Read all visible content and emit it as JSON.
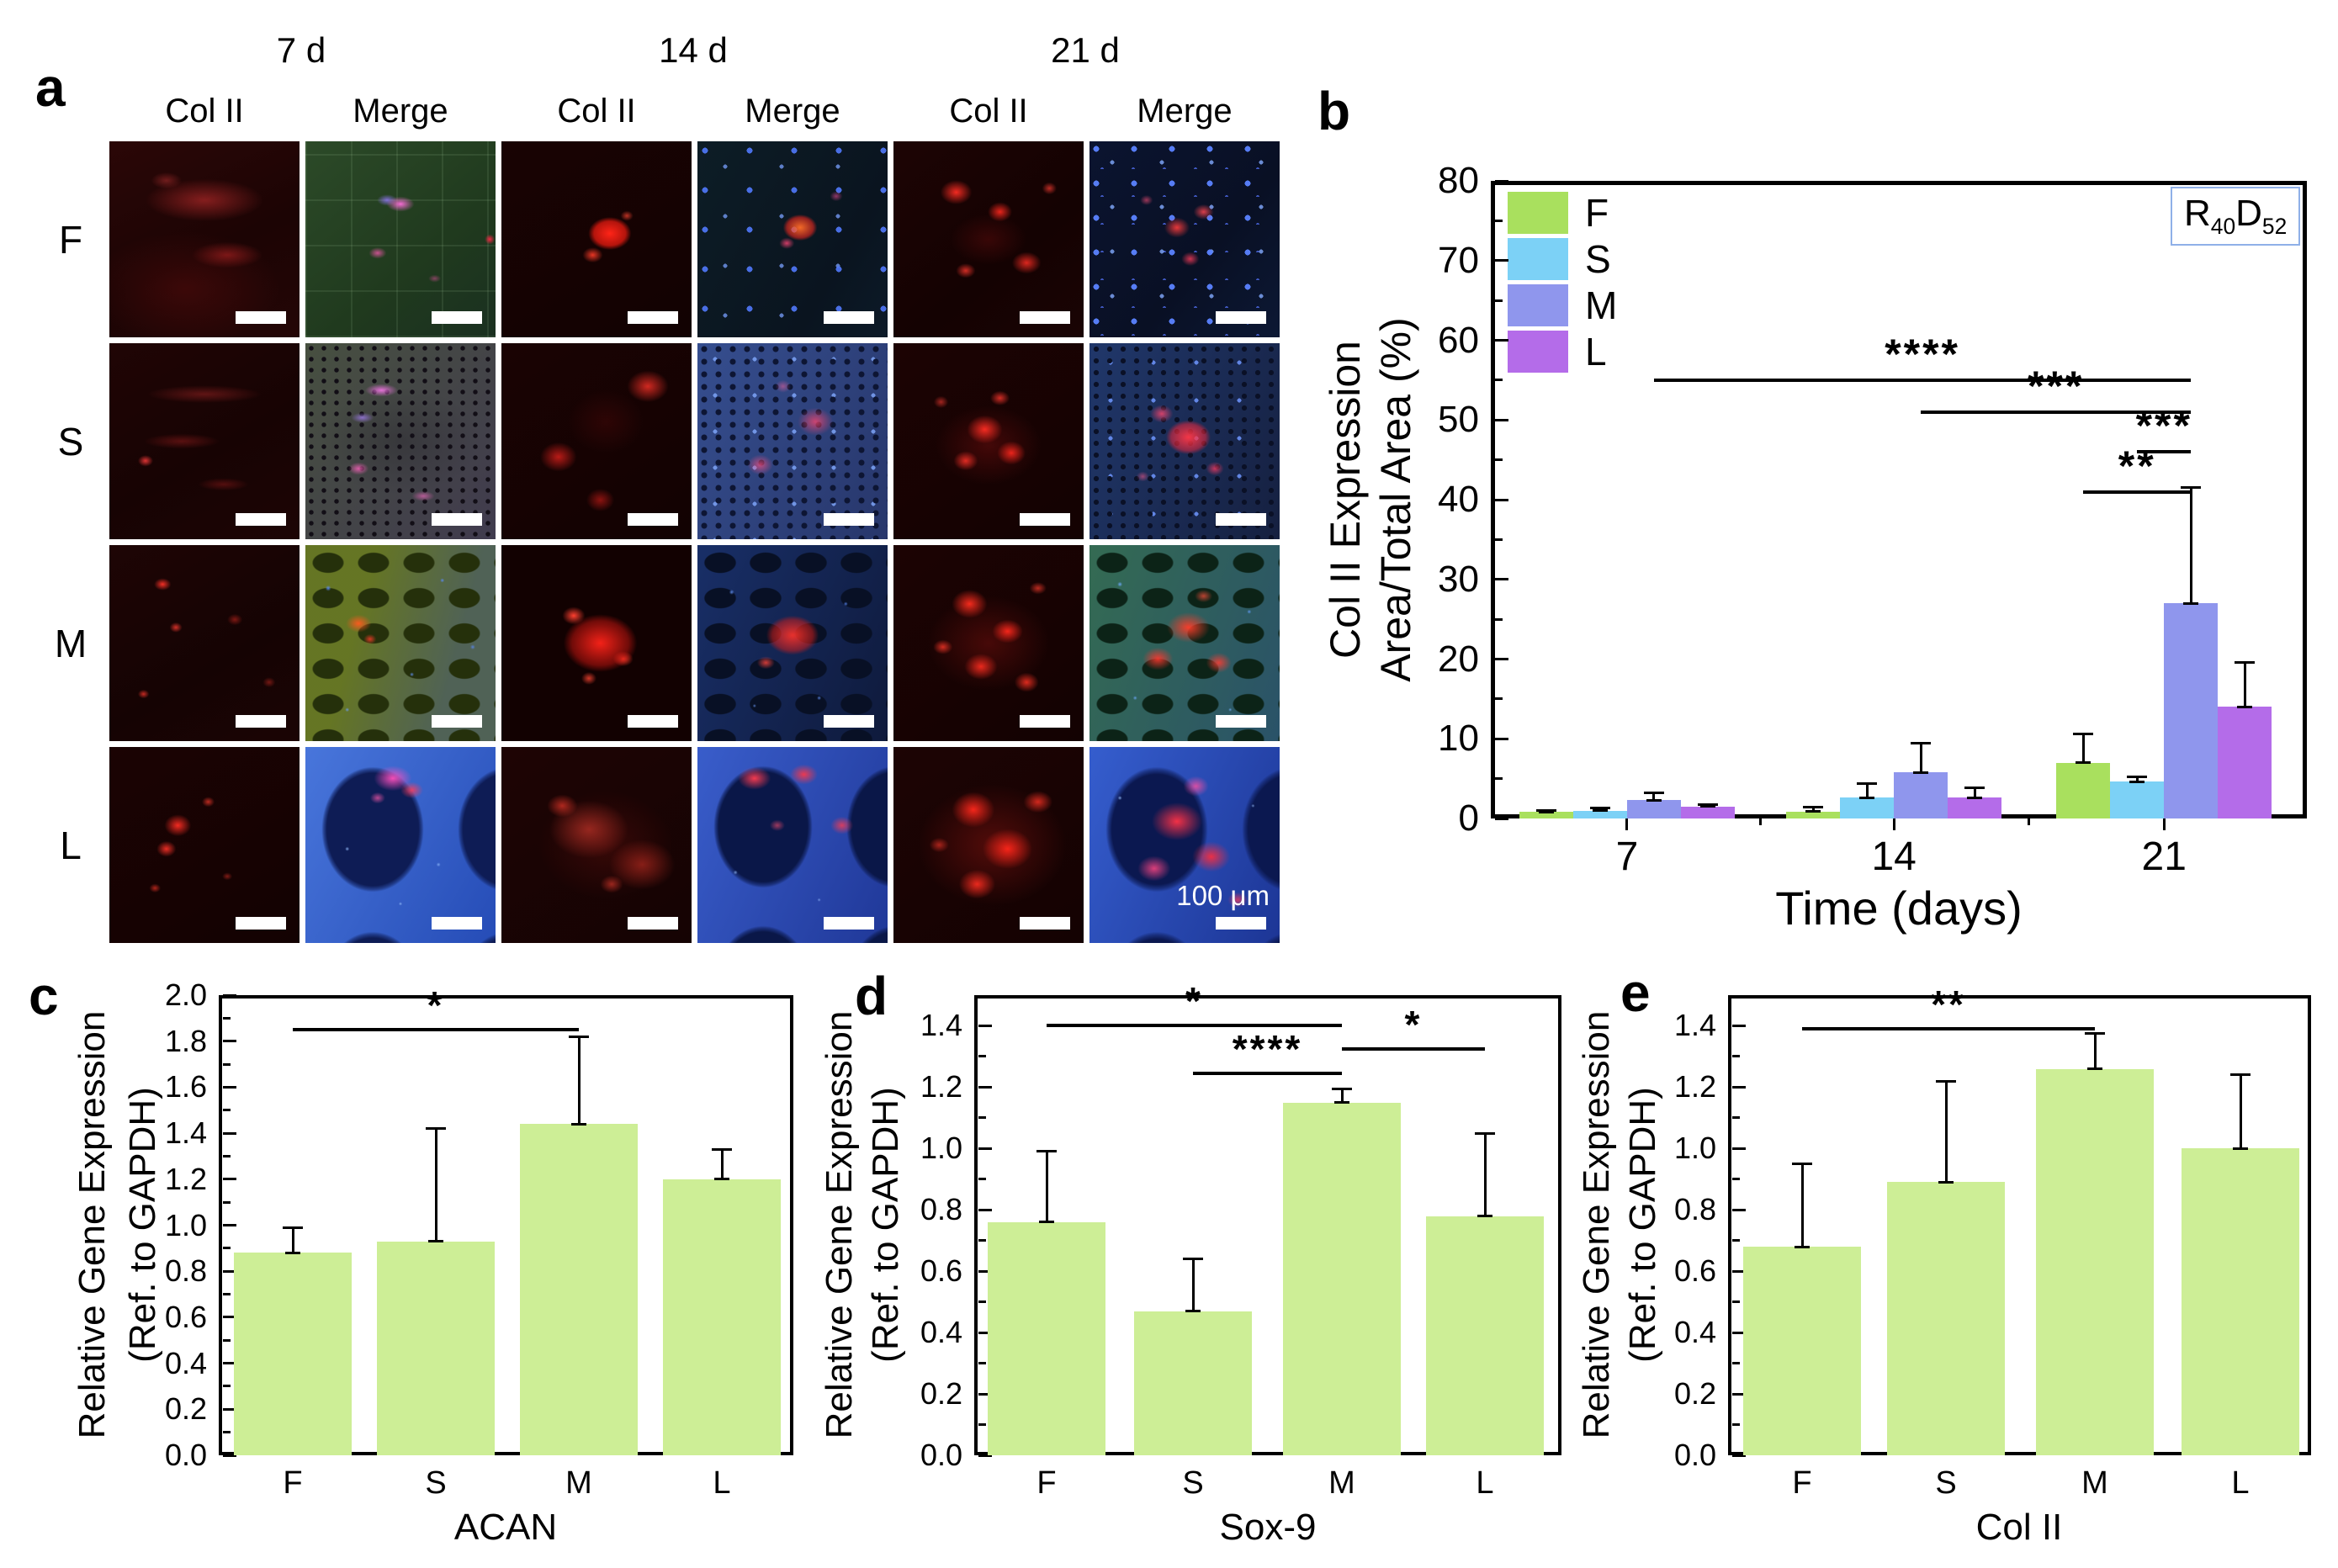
{
  "letters": [
    "a",
    "b",
    "c",
    "d",
    "e"
  ],
  "panel_a": {
    "time_headers": [
      "7 d",
      "14 d",
      "21 d"
    ],
    "channel_headers": [
      "Col II",
      "Merge",
      "Col II",
      "Merge",
      "Col II",
      "Merge"
    ],
    "row_labels": [
      "F",
      "S",
      "M",
      "L"
    ],
    "scale_label": "100 μm",
    "tiles": [
      {
        "row": "F",
        "time": "7 d",
        "channel": "Col II",
        "texture": "f7c"
      },
      {
        "row": "F",
        "time": "7 d",
        "channel": "Merge",
        "texture": "f7m"
      },
      {
        "row": "F",
        "time": "14 d",
        "channel": "Col II",
        "texture": "f14c"
      },
      {
        "row": "F",
        "time": "14 d",
        "channel": "Merge",
        "texture": "f14m"
      },
      {
        "row": "F",
        "time": "21 d",
        "channel": "Col II",
        "texture": "f21c"
      },
      {
        "row": "F",
        "time": "21 d",
        "channel": "Merge",
        "texture": "f21m"
      },
      {
        "row": "S",
        "time": "7 d",
        "channel": "Col II",
        "texture": "s7c"
      },
      {
        "row": "S",
        "time": "7 d",
        "channel": "Merge",
        "texture": "s7m"
      },
      {
        "row": "S",
        "time": "14 d",
        "channel": "Col II",
        "texture": "s14c"
      },
      {
        "row": "S",
        "time": "14 d",
        "channel": "Merge",
        "texture": "s14m"
      },
      {
        "row": "S",
        "time": "21 d",
        "channel": "Col II",
        "texture": "s21c"
      },
      {
        "row": "S",
        "time": "21 d",
        "channel": "Merge",
        "texture": "s21m"
      },
      {
        "row": "M",
        "time": "7 d",
        "channel": "Col II",
        "texture": "m7c"
      },
      {
        "row": "M",
        "time": "7 d",
        "channel": "Merge",
        "texture": "m7m"
      },
      {
        "row": "M",
        "time": "14 d",
        "channel": "Col II",
        "texture": "m14c"
      },
      {
        "row": "M",
        "time": "14 d",
        "channel": "Merge",
        "texture": "m14m"
      },
      {
        "row": "M",
        "time": "21 d",
        "channel": "Col II",
        "texture": "m21c"
      },
      {
        "row": "M",
        "time": "21 d",
        "channel": "Merge",
        "texture": "m21m"
      },
      {
        "row": "L",
        "time": "7 d",
        "channel": "Col II",
        "texture": "l7c"
      },
      {
        "row": "L",
        "time": "7 d",
        "channel": "Merge",
        "texture": "l7m"
      },
      {
        "row": "L",
        "time": "14 d",
        "channel": "Col II",
        "texture": "l14c"
      },
      {
        "row": "L",
        "time": "14 d",
        "channel": "Merge",
        "texture": "l14m"
      },
      {
        "row": "L",
        "time": "21 d",
        "channel": "Col II",
        "texture": "l21c"
      },
      {
        "row": "L",
        "time": "21 d",
        "channel": "Merge",
        "texture": "l21m",
        "scale_label": true
      }
    ]
  },
  "chart_data": [
    {
      "id": "b",
      "type": "bar",
      "grouped": true,
      "title": "",
      "xlabel": "Time (days)",
      "ylabel_line1": "Col II Expression",
      "ylabel_line2": "Area/Total Area (%)",
      "categories": [
        "7",
        "14",
        "21"
      ],
      "series": [
        {
          "name": "F",
          "color": "#a9e05e",
          "values": [
            0.8,
            0.85,
            7.0
          ],
          "errors": [
            0.25,
            0.55,
            3.6
          ]
        },
        {
          "name": "S",
          "color": "#7cd1f6",
          "values": [
            1.0,
            2.6,
            4.6
          ],
          "errors": [
            0.3,
            1.8,
            0.6
          ]
        },
        {
          "name": "M",
          "color": "#8f96ed",
          "values": [
            2.3,
            5.8,
            27.0
          ],
          "errors": [
            0.9,
            3.6,
            14.5
          ]
        },
        {
          "name": "L",
          "color": "#b46ce9",
          "values": [
            1.5,
            2.6,
            14.0
          ],
          "errors": [
            0.25,
            1.2,
            5.6
          ]
        }
      ],
      "ylim": [
        0,
        80
      ],
      "ytick_step": 10,
      "ytick_max": 80,
      "tick_decimals": 0,
      "grid": false,
      "legend_position": "top-left",
      "corner_tag": {
        "base1": "R",
        "sub1": "40",
        "base2": "D",
        "sub2": "52"
      },
      "significance": [
        {
          "c1": 0,
          "s1": 2,
          "c2": 2,
          "s2": 2,
          "y": 55,
          "label": "****"
        },
        {
          "c1": 1,
          "s1": 2,
          "c2": 2,
          "s2": 2,
          "y": 51,
          "label": "***"
        },
        {
          "c1": 2,
          "s1": 1,
          "c2": 2,
          "s2": 2,
          "y": 46,
          "label": "***"
        },
        {
          "c1": 2,
          "s1": 0,
          "c2": 2,
          "s2": 2,
          "y": 41,
          "label": "**"
        }
      ]
    },
    {
      "id": "c",
      "type": "bar",
      "title": "",
      "xlabel": "ACAN",
      "ylabel_line1": "Relative Gene Expression",
      "ylabel_line2": "(Ref. to GAPDH)",
      "categories": [
        "F",
        "S",
        "M",
        "L"
      ],
      "values": [
        0.88,
        0.93,
        1.44,
        1.2
      ],
      "errors": [
        0.11,
        0.49,
        0.38,
        0.13
      ],
      "bar_color": "#cdee96",
      "ylim": [
        0,
        2.0
      ],
      "ytick_step": 0.2,
      "ytick_max": 2.0,
      "tick_decimals": 1,
      "grid": false,
      "significance": [
        {
          "i1": 0,
          "i2": 2,
          "y": 1.85,
          "label": "*"
        }
      ]
    },
    {
      "id": "d",
      "type": "bar",
      "title": "",
      "xlabel": "Sox-9",
      "ylabel_line1": "Relative Gene Expression",
      "ylabel_line2": "(Ref. to GAPDH)",
      "categories": [
        "F",
        "S",
        "M",
        "L"
      ],
      "values": [
        0.76,
        0.47,
        1.15,
        0.78
      ],
      "errors": [
        0.23,
        0.17,
        0.045,
        0.27
      ],
      "bar_color": "#cdee96",
      "ylim": [
        0,
        1.5
      ],
      "ytick_step": 0.2,
      "ytick_max": 1.4,
      "tick_decimals": 1,
      "grid": false,
      "significance": [
        {
          "i1": 0,
          "i2": 2,
          "y": 1.4,
          "label": "*"
        },
        {
          "i1": 1,
          "i2": 2,
          "y": 1.245,
          "label": "****"
        },
        {
          "i1": 2,
          "i2": 3,
          "y": 1.325,
          "label": "*"
        }
      ]
    },
    {
      "id": "e",
      "type": "bar",
      "title": "",
      "xlabel": "Col II",
      "ylabel_line1": "Relative Gene Expression",
      "ylabel_line2": "(Ref. to GAPDH)",
      "categories": [
        "F",
        "S",
        "M",
        "L"
      ],
      "values": [
        0.68,
        0.89,
        1.26,
        1.0
      ],
      "errors": [
        0.27,
        0.33,
        0.115,
        0.24
      ],
      "bar_color": "#cdee96",
      "ylim": [
        0,
        1.5
      ],
      "ytick_step": 0.2,
      "ytick_max": 1.4,
      "tick_decimals": 1,
      "grid": false,
      "significance": [
        {
          "i1": 0,
          "i2": 2,
          "y": 1.39,
          "label": "**"
        }
      ]
    }
  ]
}
